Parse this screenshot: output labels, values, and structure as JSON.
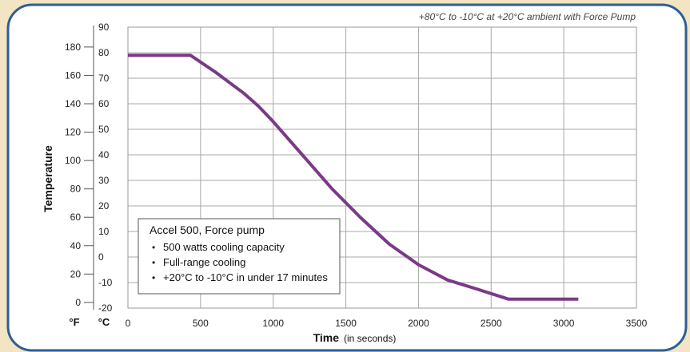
{
  "chart_data": {
    "type": "line",
    "annotation": "+80°C to -10°C at +20°C ambient with Force Pump",
    "xlabel": "Time",
    "xlabel_note": "(in seconds)",
    "ylabel": "Temperature",
    "unit_f": "°F",
    "unit_c": "°C",
    "xlim": [
      0,
      3500
    ],
    "ylim_c": [
      -20,
      90
    ],
    "grid": true,
    "x_ticks": [
      "0",
      "500",
      "1000",
      "1500",
      "2000",
      "2500",
      "3000",
      "3500"
    ],
    "y_ticks_c": [
      "-20",
      "-10",
      "0",
      "10",
      "20",
      "30",
      "40",
      "50",
      "60",
      "70",
      "80",
      "90"
    ],
    "y_ticks_f": [
      "0",
      "20",
      "40",
      "60",
      "80",
      "100",
      "120",
      "140",
      "160",
      "180"
    ],
    "series": [
      {
        "name": "Accel 500, Force pump",
        "color": "#7b3a87",
        "x": [
          0,
          430,
          600,
          800,
          900,
          1000,
          1200,
          1400,
          1600,
          1800,
          2000,
          2200,
          2400,
          2620,
          3100
        ],
        "y": [
          79,
          79,
          72.5,
          64,
          59,
          53,
          40,
          27,
          15.5,
          5,
          -3,
          -9,
          -12.5,
          -16.5,
          -16.5
        ]
      }
    ],
    "legend": {
      "title": "Accel 500, Force pump",
      "items": [
        "500 watts cooling capacity",
        "Full-range cooling",
        "+20°C to -10°C in under 17 minutes"
      ]
    }
  }
}
